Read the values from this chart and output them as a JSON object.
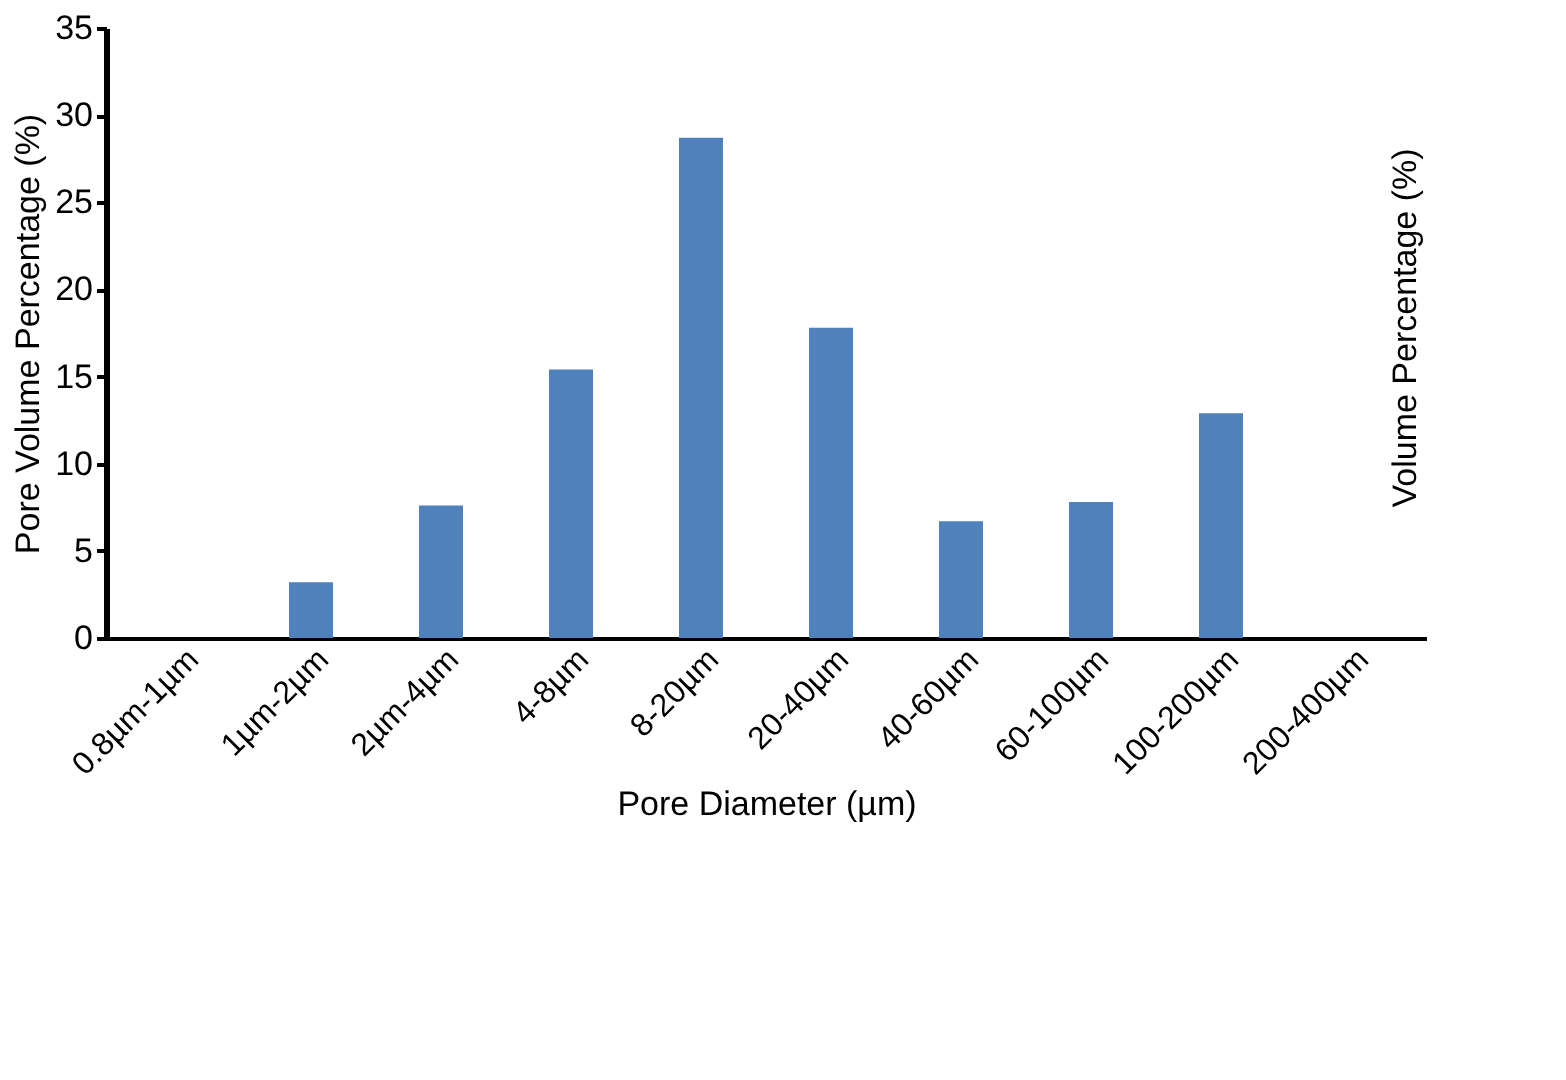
{
  "chart_data": {
    "type": "bar",
    "xlabel": "Pore Diameter (µm)",
    "ylabel": "Pore Volume  Percentage  (%)",
    "categories": [
      "0.8µm-1µm",
      "1µm-2µm",
      "2µm-4µm",
      "4-8µm",
      "8-20µm",
      "20-40µm",
      "40-60µm",
      "60-100µm",
      "100-200µm",
      "200-400µm"
    ],
    "values": [
      0,
      3.2,
      7.6,
      15.4,
      28.7,
      17.8,
      6.7,
      7.8,
      12.9,
      0
    ],
    "color": "#4f81bd",
    "ylim": [
      0,
      35
    ],
    "yticks": [
      0,
      5,
      10,
      15,
      20,
      25,
      30,
      35
    ],
    "grid": false,
    "annotations": [
      "Volume Percentage  (%)"
    ]
  }
}
